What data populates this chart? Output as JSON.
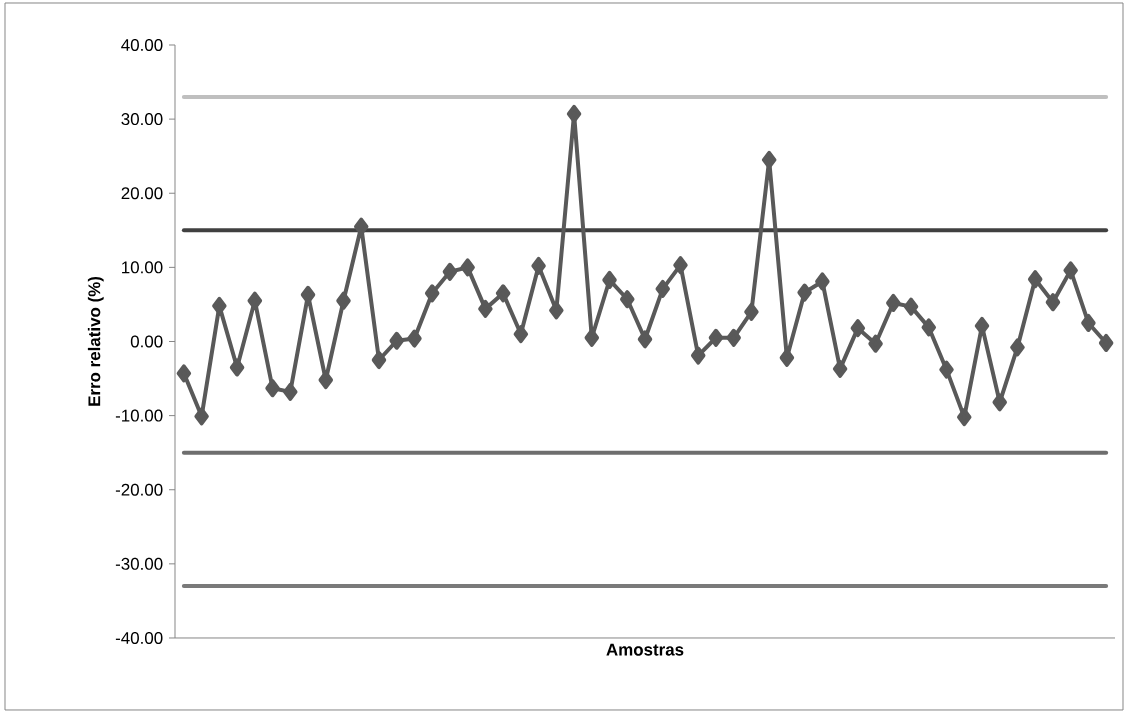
{
  "chart_data": {
    "type": "line",
    "xlabel": "Amostras",
    "ylabel": "Erro relativo (%)",
    "categories": [
      null,
      null,
      null,
      null,
      null,
      null,
      null,
      null,
      null,
      null,
      null,
      null,
      null,
      null,
      null,
      null,
      null,
      null,
      null,
      null,
      null,
      null,
      null,
      null,
      null,
      null,
      null,
      null,
      null,
      null,
      null,
      null,
      null,
      null,
      null,
      null,
      null,
      null,
      null,
      null,
      null,
      null,
      null,
      null,
      null,
      null,
      null,
      null,
      null,
      null,
      null,
      null,
      null
    ],
    "series": [
      {
        "color": "#595959",
        "values": [
          -4.3,
          -10.1,
          4.8,
          -3.5,
          5.5,
          -6.3,
          -6.8,
          6.3,
          -5.2,
          5.5,
          15.5,
          -2.5,
          0.1,
          0.4,
          6.5,
          9.4,
          10.0,
          4.4,
          6.5,
          1.0,
          10.2,
          4.2,
          30.7,
          0.5,
          8.3,
          5.7,
          0.3,
          7.1,
          10.3,
          -1.9,
          0.5,
          0.5,
          4.0,
          24.5,
          -2.2,
          6.6,
          8.1,
          -3.7,
          1.8,
          -0.3,
          5.2,
          4.7,
          1.9,
          -3.8,
          -10.2,
          2.1,
          -8.2,
          -0.8,
          8.4,
          5.3,
          9.6,
          2.5,
          -0.2
        ]
      }
    ],
    "marker": "diamond",
    "line_style": "solid",
    "grid": false,
    "ylim": [
      -40,
      40
    ],
    "yticks": [
      {
        "value": -40,
        "label": "-40.00"
      },
      {
        "value": -30,
        "label": "-30.00"
      },
      {
        "value": -20,
        "label": "-20.00"
      },
      {
        "value": -10,
        "label": "-10.00"
      },
      {
        "value": 0,
        "label": "0.00"
      },
      {
        "value": 10,
        "label": "10.00"
      },
      {
        "value": 20,
        "label": "20.00"
      },
      {
        "value": 30,
        "label": "30.00"
      },
      {
        "value": 40,
        "label": "40.00"
      }
    ],
    "ref_lines": [
      {
        "axis": "y",
        "value": 33,
        "color": "#bfbfbf"
      },
      {
        "axis": "y",
        "value": 15,
        "color": "#404040"
      },
      {
        "axis": "y",
        "value": -15,
        "color": "#6e6e6e"
      },
      {
        "axis": "y",
        "value": -33,
        "color": "#7a7a7a"
      }
    ]
  }
}
